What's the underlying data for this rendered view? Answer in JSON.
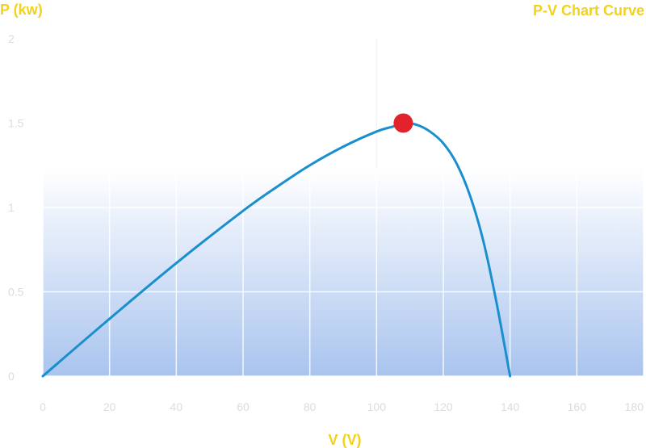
{
  "chart_data": {
    "type": "line",
    "title": "P-V Chart Curve",
    "xlabel": "V (V)",
    "ylabel": "P (kw)",
    "xlim": [
      0,
      180
    ],
    "ylim": [
      0,
      2
    ],
    "x_ticks": [
      0,
      20,
      40,
      60,
      80,
      100,
      120,
      140,
      160,
      180
    ],
    "x_tick_labels": [
      "0",
      "20",
      "40",
      "60",
      "80",
      "100",
      "120",
      "140",
      "160",
      "180"
    ],
    "y_ticks": [
      0,
      0.5,
      1,
      1.5,
      2
    ],
    "y_tick_labels": [
      "0",
      "0.5",
      "1",
      "1.5",
      "2"
    ],
    "grid": true,
    "series": [
      {
        "x": [
          0,
          20,
          40,
          60,
          70,
          80,
          90,
          100,
          105,
          108,
          112,
          116,
          120,
          124,
          128,
          132,
          136,
          140
        ],
        "y": [
          0,
          0.34,
          0.67,
          0.98,
          1.12,
          1.25,
          1.36,
          1.45,
          1.48,
          1.5,
          1.49,
          1.45,
          1.38,
          1.26,
          1.07,
          0.8,
          0.43,
          0
        ]
      }
    ],
    "annotations": [
      {
        "type": "marker",
        "label": "",
        "x": 108,
        "y": 1.5
      }
    ],
    "colors": {
      "line": "#1a8fcd",
      "marker": "#e3232b",
      "title_text": "#f2d21b",
      "tick_text": "#dcdcdc",
      "grid": "#ffffff",
      "fill_top": "#ffffff",
      "fill_bottom": "#a9c4ee"
    }
  }
}
